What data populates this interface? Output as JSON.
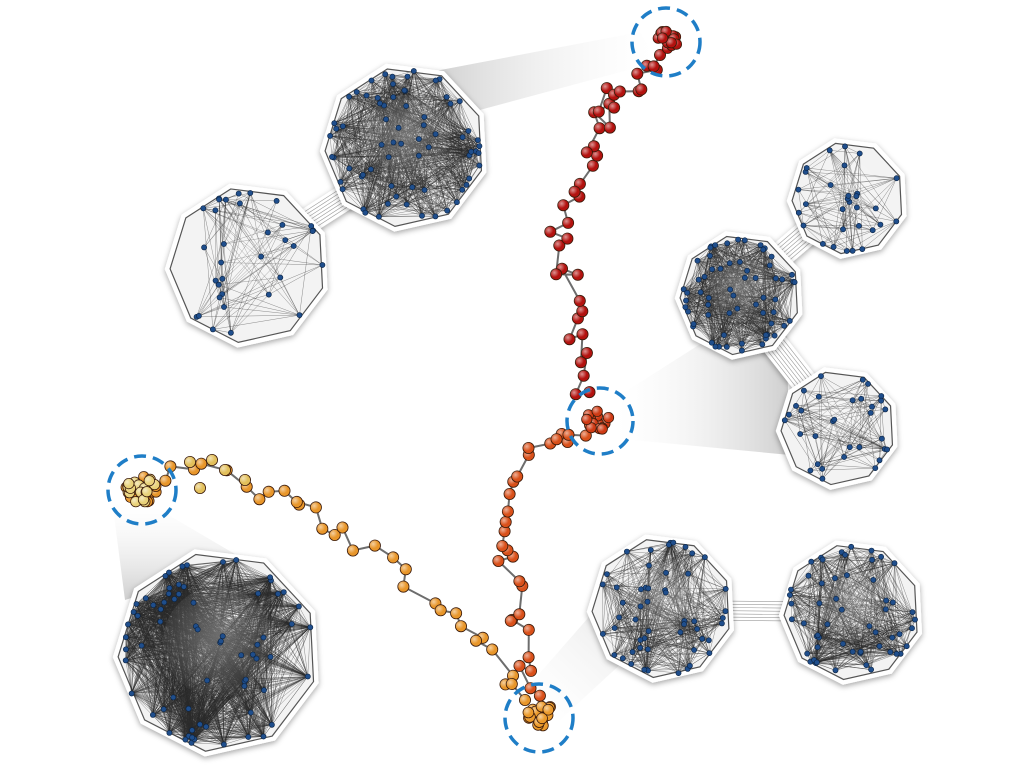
{
  "colors": {
    "background": "#ffffff",
    "graph_node": "#1f4e8c",
    "graph_edge": "#2b2b2b",
    "highlight_ring": "#1f7ec7",
    "callout_fill": "#cfcfcf",
    "trajectory_red": "#b3120f",
    "trajectory_orange_red": "#d9501a",
    "trajectory_orange": "#e8962a",
    "trajectory_yellow": "#e9d27a"
  },
  "trajectories": [
    {
      "id": "red-branch",
      "color_key": "trajectory_red",
      "count": 70
    },
    {
      "id": "orange-red-branch",
      "color_key": "trajectory_orange_red",
      "count": 60
    },
    {
      "id": "yellow-orange-branch",
      "color_key": "trajectory_yellow",
      "count": 75
    }
  ],
  "highlighted_states": [
    {
      "id": "top-state",
      "trajectory": "red-branch"
    },
    {
      "id": "middle-state",
      "trajectory": "orange-red-branch"
    },
    {
      "id": "bottom-state",
      "trajectory": "orange-red-branch"
    },
    {
      "id": "left-state",
      "trajectory": "yellow-orange-branch"
    }
  ],
  "network_insets": [
    {
      "id": "two-community-top-left",
      "linked_state": "top-state",
      "communities": 2
    },
    {
      "id": "three-community-right",
      "linked_state": "middle-state",
      "communities": 3
    },
    {
      "id": "two-community-bottom-right",
      "linked_state": "bottom-state",
      "communities": 2
    },
    {
      "id": "single-community-bottom-left",
      "linked_state": "left-state",
      "communities": 1
    }
  ]
}
